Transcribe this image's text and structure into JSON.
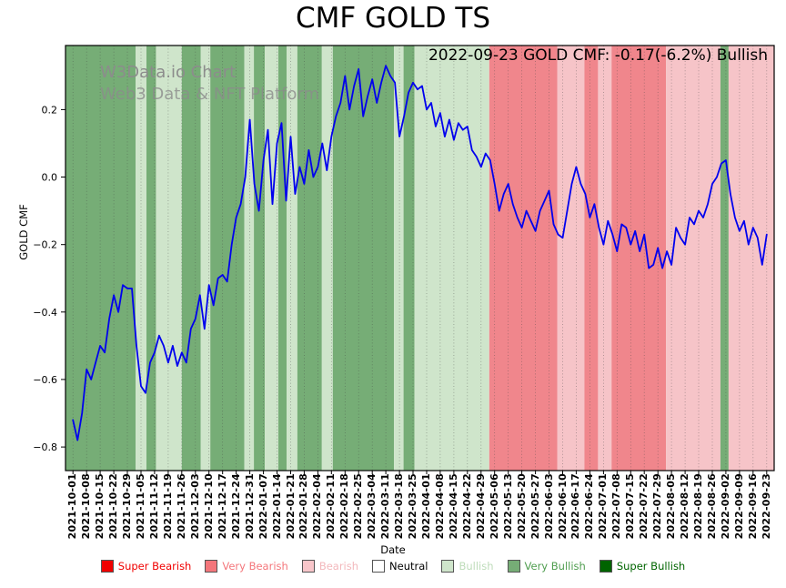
{
  "title": "CMF GOLD TS",
  "watermark": {
    "line1": "W3Data.io Chart",
    "line2": "Web3 Data & NFT Platform"
  },
  "annotation": {
    "text": "2022-09-23 GOLD CMF: -0.17(-6.2%) Bullish"
  },
  "chart_data": {
    "type": "line",
    "title": "CMF GOLD TS",
    "xlabel": "Date",
    "ylabel": "GOLD CMF",
    "grid": "vertical-dotted",
    "ylim": [
      -0.87,
      0.39
    ],
    "y_ticks": [
      0.2,
      0.0,
      -0.2,
      -0.4,
      -0.6,
      -0.8
    ],
    "line_color": "#0000ee",
    "x_tick_labels": [
      "2021-10-01",
      "2021-10-08",
      "2021-10-15",
      "2021-10-22",
      "2021-10-29",
      "2021-11-05",
      "2021-11-12",
      "2021-11-19",
      "2021-11-26",
      "2021-12-03",
      "2021-12-10",
      "2021-12-17",
      "2021-12-24",
      "2021-12-31",
      "2022-01-07",
      "2022-01-14",
      "2022-01-21",
      "2022-01-28",
      "2022-02-04",
      "2022-02-11",
      "2022-02-18",
      "2022-02-25",
      "2022-03-04",
      "2022-03-11",
      "2022-03-18",
      "2022-03-25",
      "2022-04-01",
      "2022-04-08",
      "2022-04-15",
      "2022-04-22",
      "2022-04-29",
      "2022-05-06",
      "2022-05-13",
      "2022-05-20",
      "2022-05-27",
      "2022-06-03",
      "2022-06-10",
      "2022-06-17",
      "2022-06-24",
      "2022-07-01",
      "2022-07-08",
      "2022-07-15",
      "2022-07-22",
      "2022-07-29",
      "2022-08-05",
      "2022-08-12",
      "2022-08-19",
      "2022-08-26",
      "2022-09-02",
      "2022-09-09",
      "2022-09-16",
      "2022-09-23"
    ],
    "series": [
      {
        "name": "GOLD CMF",
        "points_per_week": 3,
        "values": [
          -0.72,
          -0.78,
          -0.7,
          -0.57,
          -0.6,
          -0.55,
          -0.5,
          -0.52,
          -0.42,
          -0.35,
          -0.4,
          -0.32,
          -0.33,
          -0.33,
          -0.5,
          -0.62,
          -0.64,
          -0.55,
          -0.52,
          -0.47,
          -0.5,
          -0.55,
          -0.5,
          -0.56,
          -0.52,
          -0.55,
          -0.45,
          -0.42,
          -0.35,
          -0.45,
          -0.32,
          -0.38,
          -0.3,
          -0.29,
          -0.31,
          -0.2,
          -0.12,
          -0.08,
          0.0,
          0.17,
          -0.02,
          -0.1,
          0.05,
          0.14,
          -0.08,
          0.1,
          0.16,
          -0.07,
          0.12,
          -0.05,
          0.03,
          -0.02,
          0.08,
          0.0,
          0.03,
          0.1,
          0.02,
          0.12,
          0.18,
          0.22,
          0.3,
          0.2,
          0.27,
          0.32,
          0.18,
          0.24,
          0.29,
          0.22,
          0.28,
          0.33,
          0.3,
          0.28,
          0.12,
          0.18,
          0.25,
          0.28,
          0.26,
          0.27,
          0.2,
          0.22,
          0.15,
          0.19,
          0.12,
          0.17,
          0.11,
          0.16,
          0.14,
          0.15,
          0.08,
          0.06,
          0.03,
          0.07,
          0.05,
          -0.02,
          -0.1,
          -0.05,
          -0.02,
          -0.08,
          -0.12,
          -0.15,
          -0.1,
          -0.13,
          -0.16,
          -0.1,
          -0.07,
          -0.04,
          -0.14,
          -0.17,
          -0.18,
          -0.1,
          -0.02,
          0.03,
          -0.02,
          -0.05,
          -0.12,
          -0.08,
          -0.15,
          -0.2,
          -0.13,
          -0.17,
          -0.22,
          -0.14,
          -0.15,
          -0.2,
          -0.16,
          -0.22,
          -0.17,
          -0.27,
          -0.26,
          -0.21,
          -0.27,
          -0.22,
          -0.26,
          -0.15,
          -0.18,
          -0.2,
          -0.12,
          -0.14,
          -0.1,
          -0.12,
          -0.08,
          -0.02,
          0.0,
          0.04,
          0.05,
          -0.05,
          -0.12,
          -0.16,
          -0.13,
          -0.2,
          -0.15,
          -0.18,
          -0.26,
          -0.17
        ]
      }
    ],
    "band_colors": {
      "super_bearish": "#f00000",
      "very_bearish": "#f0868c",
      "bearish": "#f6c4c8",
      "neutral": "#ffffff",
      "bullish": "#cfe5cb",
      "very_bullish": "#76ad76",
      "super_bullish": "#006400"
    },
    "bands": [
      {
        "start": -0.6,
        "end": 4.6,
        "level": "very_bullish"
      },
      {
        "start": 4.6,
        "end": 5.4,
        "level": "bullish"
      },
      {
        "start": 5.4,
        "end": 6.1,
        "level": "very_bullish"
      },
      {
        "start": 6.1,
        "end": 8.0,
        "level": "bullish"
      },
      {
        "start": 8.0,
        "end": 9.4,
        "level": "very_bullish"
      },
      {
        "start": 9.4,
        "end": 10.1,
        "level": "bullish"
      },
      {
        "start": 10.1,
        "end": 12.6,
        "level": "very_bullish"
      },
      {
        "start": 12.6,
        "end": 13.3,
        "level": "bullish"
      },
      {
        "start": 13.3,
        "end": 14.1,
        "level": "very_bullish"
      },
      {
        "start": 14.1,
        "end": 15.1,
        "level": "bullish"
      },
      {
        "start": 15.1,
        "end": 15.7,
        "level": "very_bullish"
      },
      {
        "start": 15.7,
        "end": 16.5,
        "level": "bullish"
      },
      {
        "start": 16.5,
        "end": 18.3,
        "level": "very_bullish"
      },
      {
        "start": 18.3,
        "end": 19.1,
        "level": "bullish"
      },
      {
        "start": 19.1,
        "end": 23.6,
        "level": "very_bullish"
      },
      {
        "start": 23.6,
        "end": 24.3,
        "level": "bullish"
      },
      {
        "start": 24.3,
        "end": 25.1,
        "level": "very_bullish"
      },
      {
        "start": 25.1,
        "end": 30.6,
        "level": "bullish"
      },
      {
        "start": 30.6,
        "end": 35.6,
        "level": "very_bearish"
      },
      {
        "start": 35.6,
        "end": 37.6,
        "level": "bearish"
      },
      {
        "start": 37.6,
        "end": 38.6,
        "level": "very_bearish"
      },
      {
        "start": 38.6,
        "end": 39.6,
        "level": "bearish"
      },
      {
        "start": 39.6,
        "end": 43.6,
        "level": "very_bearish"
      },
      {
        "start": 43.6,
        "end": 47.6,
        "level": "bearish"
      },
      {
        "start": 47.6,
        "end": 48.2,
        "level": "very_bullish"
      },
      {
        "start": 48.2,
        "end": 51.6,
        "level": "bearish"
      }
    ]
  },
  "legend": {
    "items": [
      {
        "label": "Super Bearish",
        "swatch": "#f00000",
        "text_color": "#f00000"
      },
      {
        "label": "Very Bearish",
        "swatch": "#f4767b",
        "text_color": "#f4767b"
      },
      {
        "label": "Bearish",
        "swatch": "#f8c6ca",
        "text_color": "#f3b8bc"
      },
      {
        "label": "Neutral",
        "swatch": "#ffffff",
        "text_color": "#000000"
      },
      {
        "label": "Bullish",
        "swatch": "#cfe5cb",
        "text_color": "#bedcba"
      },
      {
        "label": "Very Bullish",
        "swatch": "#76ad76",
        "text_color": "#4f9d4f"
      },
      {
        "label": "Super Bullish",
        "swatch": "#006400",
        "text_color": "#006400"
      }
    ]
  }
}
